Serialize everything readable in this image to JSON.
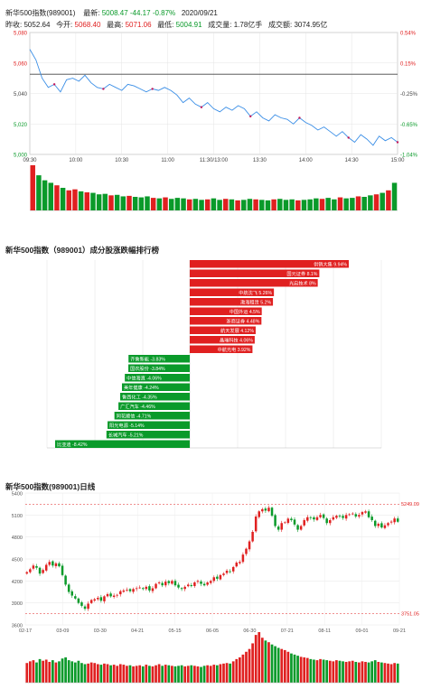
{
  "header": {
    "index_name": "新华500指数(989001)",
    "latest_label": "最新:",
    "latest_value": "5008.47",
    "change": "-44.17",
    "change_pct": "-0.87%",
    "date": "2020/09/21",
    "prev_close_label": "昨收:",
    "prev_close": "5052.64",
    "open_label": "今开:",
    "open": "5068.40",
    "high_label": "最高:",
    "high": "5071.06",
    "low_label": "最低:",
    "low": "5004.91",
    "volume_label": "成交量:",
    "volume": "1.78亿手",
    "turnover_label": "成交额:",
    "turnover": "3074.95亿"
  },
  "intraday_title": "",
  "ranking_title": "新华500指数（989001）成分股涨跌幅排行榜",
  "daily_title": "新华500指数(989001)日线",
  "colors": {
    "up": "#e02020",
    "down": "#0a9a2a",
    "line": "#3a8ee6",
    "ref": "#444444"
  },
  "chart_data": [
    {
      "type": "line",
      "name": "intraday",
      "x_ticks": [
        "09:30",
        "10:00",
        "10:30",
        "11:00",
        "11:30/13:00",
        "13:30",
        "14:00",
        "14:30",
        "15:00"
      ],
      "y_ticks": [
        "5,080",
        "5,060",
        "5,040",
        "5,020",
        "5,000"
      ],
      "pct_ticks": [
        "0.54%",
        "0.15%",
        "-0.25%",
        "-0.65%",
        "-1.04%"
      ],
      "ylim": [
        5000,
        5080
      ],
      "prev_close": 5052.64,
      "x": [
        0,
        4,
        8,
        12,
        16,
        20,
        24,
        28,
        32,
        36,
        40,
        44,
        48,
        52,
        56,
        60,
        64,
        68,
        72,
        76,
        80,
        84,
        88,
        92,
        96,
        100,
        104,
        108,
        112,
        116,
        120,
        124,
        128,
        132,
        136,
        140,
        144,
        148,
        152,
        156,
        160,
        164,
        168,
        172,
        176,
        180,
        184,
        188,
        192,
        196,
        200,
        204,
        208,
        212,
        216,
        220,
        224,
        228,
        232,
        236,
        240
      ],
      "values": [
        5069,
        5062,
        5050,
        5044,
        5046,
        5041,
        5049,
        5050,
        5048,
        5052,
        5047,
        5044,
        5043,
        5046,
        5044,
        5042,
        5046,
        5045,
        5043,
        5041,
        5043,
        5042,
        5044,
        5042,
        5039,
        5034,
        5037,
        5033,
        5031,
        5034,
        5030,
        5028,
        5031,
        5029,
        5032,
        5030,
        5025,
        5028,
        5024,
        5022,
        5026,
        5024,
        5023,
        5020,
        5024,
        5021,
        5019,
        5016,
        5018,
        5015,
        5012,
        5015,
        5011,
        5008,
        5013,
        5010,
        5006,
        5012,
        5009,
        5011,
        5008
      ],
      "volume": [
        9,
        7,
        6,
        5.5,
        5,
        4.5,
        4,
        4.2,
        3.8,
        3.6,
        3.5,
        3.2,
        3.3,
        3,
        3.1,
        2.8,
        2.9,
        2.7,
        2.6,
        2.8,
        2.5,
        2.4,
        2.6,
        2.3,
        2.5,
        2.4,
        2.2,
        2.3,
        2.1,
        2.2,
        2.4,
        2.1,
        2.3,
        2.2,
        2,
        2.1,
        2.3,
        2.2,
        2.1,
        2,
        2.2,
        2.3,
        2.1,
        2.2,
        2,
        2.1,
        2.2,
        2.4,
        2.3,
        2.5,
        2.2,
        2.6,
        2.4,
        2.5,
        2.8,
        2.7,
        3,
        3.2,
        3.5,
        4,
        5.5
      ]
    },
    {
      "type": "bar",
      "name": "constituent-ranking",
      "categories": [
        "供销大集",
        "国元证券",
        "光启技术",
        "中航沈飞",
        "渤海租赁",
        "中国外运",
        "浙商证券",
        "航天发展",
        "晶瑞科技",
        "中航光电",
        "齐鲁新能",
        "国农股份",
        "中信海直",
        "美年健康",
        "鲁西化工",
        "广汇汽车",
        "同花顺信",
        "阳光电源",
        "长城汽车",
        "比亚迪"
      ],
      "labels": [
        "供销大集 9.94%",
        "国元证券 8.1%",
        "光启技术 8%",
        "中航沈飞 5.26%",
        "渤海租赁 5.2%",
        "中国外运 4.5%",
        "浙商证券 4.48%",
        "航天发展 4.12%",
        "晶瑞科技 4.06%",
        "中航光电 3.92%",
        "齐鲁新能 -3.83%",
        "国农股份 -3.84%",
        "中信海直 -4.06%",
        "美年健康 -4.24%",
        "鲁西化工 -4.35%",
        "广汇汽车 -4.46%",
        "同花顺信 -4.71%",
        "阳光电源 -5.14%",
        "长城汽车 -5.21%",
        "比亚迪 -8.42%"
      ],
      "values": [
        9.94,
        8.1,
        8.0,
        5.26,
        5.2,
        4.5,
        4.48,
        4.12,
        4.06,
        3.92,
        -3.83,
        -3.84,
        -4.06,
        -4.24,
        -4.35,
        -4.46,
        -4.71,
        -5.14,
        -5.21,
        -8.42
      ]
    },
    {
      "type": "candlestick",
      "name": "daily",
      "x_ticks": [
        "02-17",
        "03-09",
        "03-30",
        "04-21",
        "05-15",
        "06-05",
        "06-30",
        "07-21",
        "08-11",
        "09-01",
        "09-21"
      ],
      "y_ticks": [
        "5400",
        "5100",
        "4800",
        "4500",
        "4200",
        "3900",
        "3600"
      ],
      "ylim": [
        3600,
        5400
      ],
      "max_label": "5249.09",
      "min_label": "3751.05",
      "close": [
        4320,
        4360,
        4410,
        4380,
        4300,
        4350,
        4420,
        4460,
        4410,
        4440,
        4400,
        4280,
        4150,
        4050,
        4000,
        3960,
        3900,
        3860,
        3820,
        3890,
        3940,
        3950,
        3970,
        3930,
        3990,
        4020,
        3990,
        4000,
        4010,
        4060,
        4070,
        4080,
        4060,
        4090,
        4100,
        4110,
        4090,
        4120,
        4070,
        4100,
        4160,
        4180,
        4140,
        4190,
        4170,
        4200,
        4140,
        4110,
        4090,
        4120,
        4150,
        4130,
        4180,
        4200,
        4160,
        4140,
        4180,
        4200,
        4250,
        4230,
        4280,
        4300,
        4340,
        4330,
        4390,
        4450,
        4460,
        4560,
        4640,
        4740,
        4870,
        5080,
        5150,
        5180,
        5160,
        5200,
        5090,
        4950,
        4900,
        4990,
        5000,
        5050,
        5030,
        4970,
        4900,
        4950,
        5030,
        5070,
        5060,
        5040,
        5070,
        5100,
        5060,
        4990,
        5030,
        5070,
        5090,
        5080,
        5060,
        5100,
        5110,
        5120,
        5080,
        5100,
        5140,
        5150,
        5070,
        5030,
        4950,
        4980,
        4930,
        4960,
        4990,
        5010,
        5052.64,
        5008.47
      ],
      "volume": [
        35,
        38,
        40,
        36,
        42,
        39,
        41,
        37,
        40,
        36,
        38,
        43,
        45,
        40,
        38,
        36,
        39,
        35,
        33,
        34,
        36,
        35,
        33,
        32,
        34,
        33,
        31,
        32,
        30,
        33,
        32,
        30,
        31,
        29,
        30,
        31,
        29,
        32,
        30,
        29,
        31,
        33,
        30,
        32,
        31,
        30,
        29,
        30,
        31,
        29,
        30,
        31,
        30,
        29,
        28,
        30,
        31,
        30,
        32,
        31,
        33,
        34,
        35,
        34,
        38,
        42,
        45,
        50,
        55,
        60,
        70,
        85,
        90,
        80,
        75,
        72,
        68,
        65,
        62,
        60,
        58,
        55,
        52,
        50,
        48,
        46,
        45,
        44,
        42,
        41,
        40,
        42,
        41,
        40,
        39,
        38,
        40,
        39,
        38,
        37,
        38,
        39,
        37,
        36,
        38,
        37,
        36,
        38,
        40,
        37,
        36,
        35,
        34,
        33,
        35,
        34
      ]
    }
  ]
}
